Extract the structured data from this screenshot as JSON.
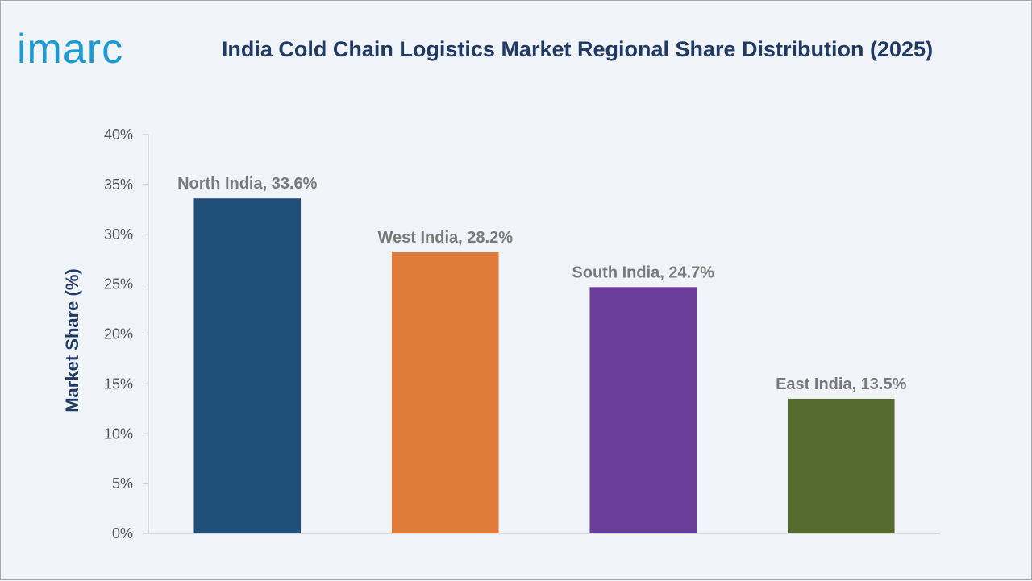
{
  "brand": {
    "logo_text": "imarc"
  },
  "chart_data": {
    "type": "bar",
    "title": "India Cold Chain Logistics Market Regional Share Distribution (2025)",
    "xlabel": "",
    "ylabel": "Market Share (%)",
    "ylim": [
      0,
      40
    ],
    "yticks": [
      0,
      5,
      10,
      15,
      20,
      25,
      30,
      35,
      40
    ],
    "ytick_suffix": "%",
    "grid": false,
    "categories": [
      "North India",
      "West India",
      "South India",
      "East India"
    ],
    "values": [
      33.6,
      28.2,
      24.7,
      13.5
    ],
    "data_labels": [
      "North India, 33.6%",
      "West India, 28.2%",
      "South India, 24.7%",
      "East India, 13.5%"
    ],
    "colors": [
      "#1f4e79",
      "#e07b39",
      "#6a3d9a",
      "#556b2f"
    ]
  }
}
